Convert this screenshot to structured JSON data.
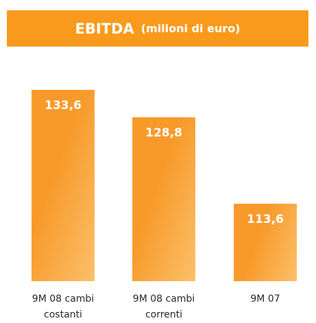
{
  "chart_data": {
    "type": "bar",
    "title": "EBITDA",
    "subtitle": "(milioni di euro)",
    "categories": [
      "9M 08 cambi costanti",
      "9M 08 cambi correnti",
      "9M 07"
    ],
    "values": [
      133.6,
      128.8,
      113.6
    ],
    "value_labels": [
      "133,6",
      "128,8",
      "113,6"
    ],
    "color": "#f79a2a",
    "ylim": [
      100,
      140
    ]
  }
}
